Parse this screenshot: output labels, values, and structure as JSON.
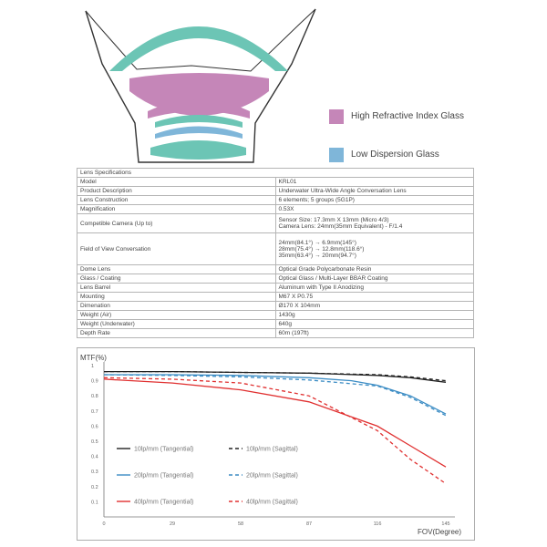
{
  "legend": {
    "high": {
      "label": "High Refractive Index Glass",
      "color": "#c586b8"
    },
    "low": {
      "label": "Low Dispersion Glass",
      "color": "#7fb6d9"
    }
  },
  "lens_colors": {
    "teal": "#6cc5b5",
    "pink": "#c586b8",
    "blue": "#7fb6d9"
  },
  "specs": {
    "title": "Lens Specifications",
    "rows": [
      {
        "key": "Model",
        "value": "KRL01"
      },
      {
        "key": "Product Description",
        "value": "Underwater Ultra-Wide Angle Conversation Lens"
      },
      {
        "key": "Lens Construction",
        "value": "6 elements; 5 groups (5G1P)"
      },
      {
        "key": "Magnification",
        "value": "0.53X"
      },
      {
        "key": "Competible Camera (Up to)",
        "value": "Sensor Size: 17.3mm X 13mm (Micro 4/3)\nCamera Lens: 24mm(35mm Equivalent) - F/1.4"
      },
      {
        "key": "Field of View Conversation",
        "value": "24mm(84.1°) → 6.9mm(145°)\n28mm(75.4°) → 12.8mm(118.6°)\n35mm(63.4°) → 20mm(94.7°)"
      },
      {
        "key": "Dome Lens",
        "value": "Optical Grade Polycarbonate Resin"
      },
      {
        "key": "Glass / Coating",
        "value": "Optical Glass / Multi-Layer BBAR Coating"
      },
      {
        "key": "Lens Barrel",
        "value": "Aluminum with Type II Anodizing"
      },
      {
        "key": "Mounting",
        "value": "M67 X P0.75"
      },
      {
        "key": "Dimenation",
        "value": "Ø170 X 104mm"
      },
      {
        "key": "Weight (Air)",
        "value": "1430g"
      },
      {
        "key": "Weight (Underwater)",
        "value": "640g"
      },
      {
        "key": "Depth Rate",
        "value": "60m (197ft)"
      }
    ]
  },
  "chart_data": {
    "type": "line",
    "ylabel": "MTF(%)",
    "xlabel": "FOV(Degree)",
    "xlim": [
      0,
      145
    ],
    "ylim": [
      0,
      1
    ],
    "xticks": [
      0,
      29,
      58,
      87,
      116,
      145
    ],
    "yticks": [
      0.1,
      0.2,
      0.3,
      0.4,
      0.5,
      0.6,
      0.7,
      0.8,
      0.9,
      1
    ],
    "grid": false,
    "series": [
      {
        "name": "10lp/mm (Tangential)",
        "color": "#222222",
        "dash": false,
        "x": [
          0,
          29,
          58,
          87,
          116,
          130,
          145
        ],
        "y": [
          0.96,
          0.96,
          0.955,
          0.95,
          0.935,
          0.92,
          0.89
        ]
      },
      {
        "name": "10lp/mm (Sagittal)",
        "color": "#222222",
        "dash": true,
        "x": [
          0,
          29,
          58,
          87,
          116,
          130,
          145
        ],
        "y": [
          0.96,
          0.96,
          0.955,
          0.95,
          0.94,
          0.925,
          0.9
        ]
      },
      {
        "name": "20lp/mm (Tangential)",
        "color": "#3b8cc4",
        "dash": false,
        "x": [
          0,
          29,
          58,
          87,
          105,
          116,
          130,
          145
        ],
        "y": [
          0.94,
          0.94,
          0.935,
          0.92,
          0.9,
          0.87,
          0.8,
          0.68
        ]
      },
      {
        "name": "20lp/mm (Sagittal)",
        "color": "#3b8cc4",
        "dash": true,
        "x": [
          0,
          29,
          58,
          87,
          116,
          130,
          145
        ],
        "y": [
          0.94,
          0.935,
          0.925,
          0.905,
          0.865,
          0.79,
          0.67
        ]
      },
      {
        "name": "40lp/mm (Tangential)",
        "color": "#e03030",
        "dash": false,
        "x": [
          0,
          29,
          58,
          87,
          116,
          130,
          145
        ],
        "y": [
          0.91,
          0.885,
          0.84,
          0.76,
          0.6,
          0.47,
          0.33
        ]
      },
      {
        "name": "40lp/mm (Sagittal)",
        "color": "#e03030",
        "dash": true,
        "x": [
          0,
          29,
          58,
          87,
          116,
          130,
          145
        ],
        "y": [
          0.92,
          0.91,
          0.885,
          0.8,
          0.57,
          0.38,
          0.22
        ]
      }
    ]
  }
}
